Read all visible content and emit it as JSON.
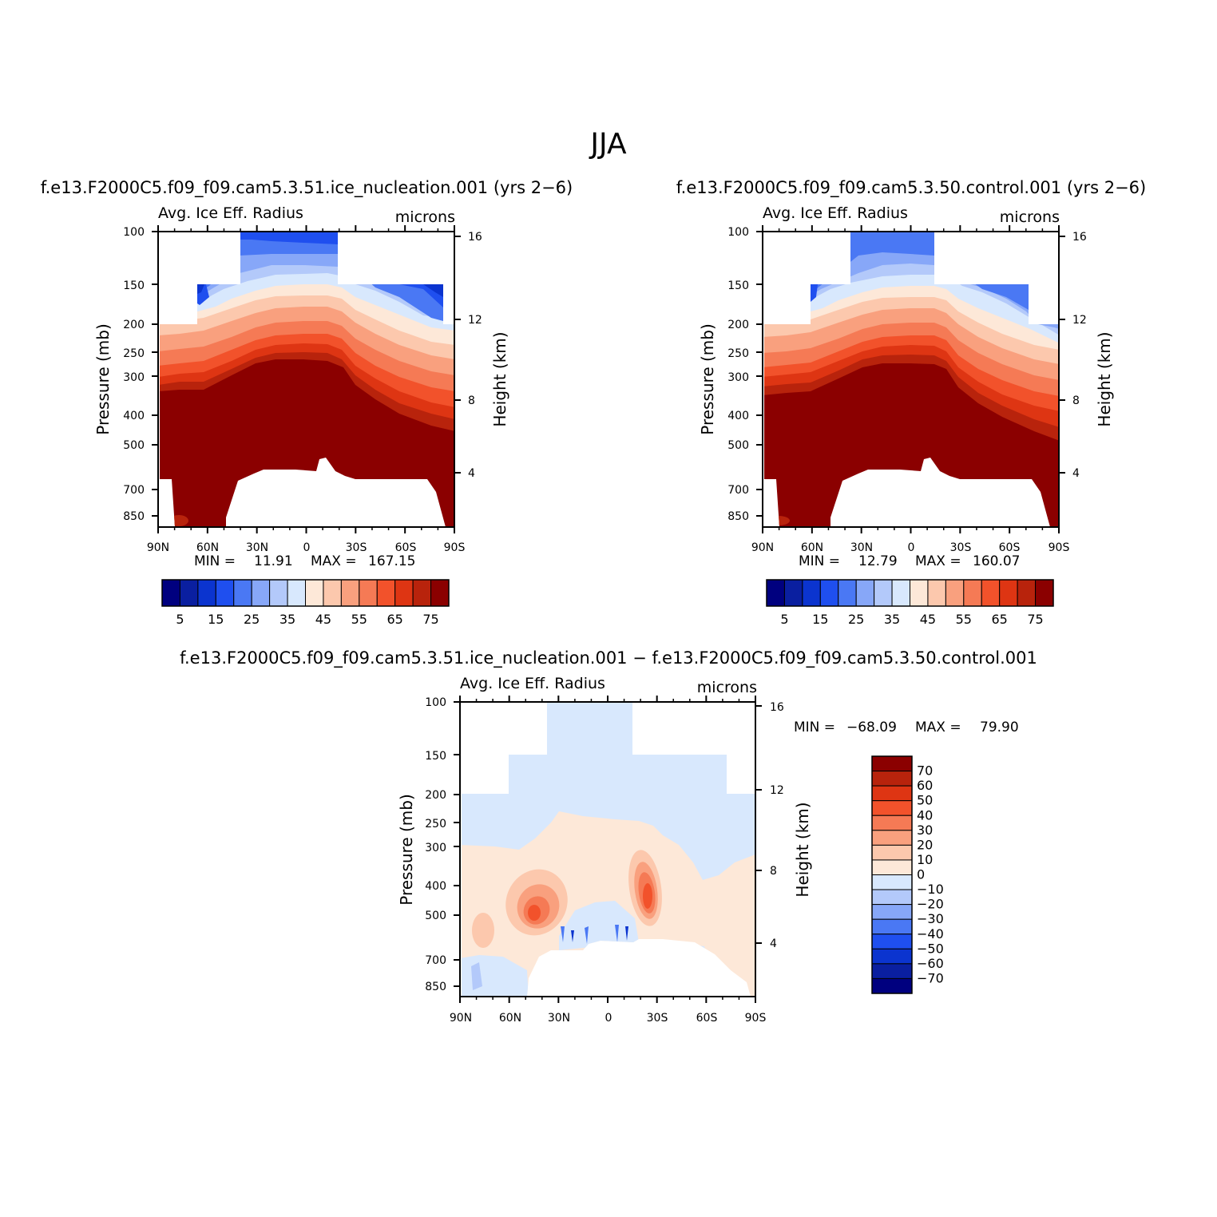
{
  "figure": {
    "title": "JJA"
  },
  "chart_data": [
    {
      "type": "heatmap",
      "id": "panel-1",
      "case": "f.e13.F2000C5.f09_f09.cam5.3.51.ice_nucleation.001 (yrs 2−6)",
      "field_label": "Avg. Ice Eff. Radius",
      "units": "microns",
      "xlabel": "",
      "ylabel": "Pressure (mb)",
      "y2label": "Height (km)",
      "x_ticks": [
        "90N",
        "60N",
        "30N",
        "0",
        "30S",
        "60S",
        "90S"
      ],
      "y_ticks": [
        "100",
        "150",
        "200",
        "250",
        "300",
        "400",
        "500",
        "700",
        "850"
      ],
      "y2_ticks": [
        "16",
        "12",
        "8",
        "4"
      ],
      "min_label": "MIN =",
      "min_value": "11.91",
      "max_label": "MAX =",
      "max_value": "167.15",
      "colorbar": {
        "levels": [
          5,
          10,
          15,
          20,
          25,
          30,
          35,
          40,
          45,
          50,
          55,
          60,
          65,
          70,
          75
        ],
        "labels": [
          "5",
          "15",
          "25",
          "35",
          "45",
          "55",
          "65",
          "75"
        ],
        "colors": [
          "#00007f",
          "#0a1fa0",
          "#0b34cf",
          "#1f4fef",
          "#4a78f4",
          "#87a7f8",
          "#b3c9fa",
          "#d8e8fd",
          "#fde8d8",
          "#fcc8ad",
          "#f9a07e",
          "#f57a55",
          "#f2522b",
          "#de3513",
          "#b8230c",
          "#8b0000"
        ]
      }
    },
    {
      "type": "heatmap",
      "id": "panel-2",
      "case": "f.e13.F2000C5.f09_f09.cam5.3.50.control.001 (yrs 2−6)",
      "field_label": "Avg. Ice Eff. Radius",
      "units": "microns",
      "xlabel": "",
      "ylabel": "Pressure (mb)",
      "y2label": "Height (km)",
      "x_ticks": [
        "90N",
        "60N",
        "30N",
        "0",
        "30S",
        "60S",
        "90S"
      ],
      "y_ticks": [
        "100",
        "150",
        "200",
        "250",
        "300",
        "400",
        "500",
        "700",
        "850"
      ],
      "y2_ticks": [
        "16",
        "12",
        "8",
        "4"
      ],
      "min_label": "MIN =",
      "min_value": "12.79",
      "max_label": "MAX =",
      "max_value": "160.07",
      "colorbar": {
        "levels": [
          5,
          10,
          15,
          20,
          25,
          30,
          35,
          40,
          45,
          50,
          55,
          60,
          65,
          70,
          75
        ],
        "labels": [
          "5",
          "15",
          "25",
          "35",
          "45",
          "55",
          "65",
          "75"
        ],
        "colors": [
          "#00007f",
          "#0a1fa0",
          "#0b34cf",
          "#1f4fef",
          "#4a78f4",
          "#87a7f8",
          "#b3c9fa",
          "#d8e8fd",
          "#fde8d8",
          "#fcc8ad",
          "#f9a07e",
          "#f57a55",
          "#f2522b",
          "#de3513",
          "#b8230c",
          "#8b0000"
        ]
      }
    },
    {
      "type": "heatmap",
      "id": "panel-3",
      "case": "f.e13.F2000C5.f09_f09.cam5.3.51.ice_nucleation.001 − f.e13.F2000C5.f09_f09.cam5.3.50.control.001",
      "field_label": "Avg. Ice Eff. Radius",
      "units": "microns",
      "xlabel": "",
      "ylabel": "Pressure (mb)",
      "y2label": "Height (km)",
      "x_ticks": [
        "90N",
        "60N",
        "30N",
        "0",
        "30S",
        "60S",
        "90S"
      ],
      "y_ticks": [
        "100",
        "150",
        "200",
        "250",
        "300",
        "400",
        "500",
        "700",
        "850"
      ],
      "y2_ticks": [
        "16",
        "12",
        "8",
        "4"
      ],
      "min_label": "MIN =",
      "min_value": "−68.09",
      "max_label": "MAX =",
      "max_value": "79.90",
      "colorbar": {
        "levels": [
          -70,
          -60,
          -50,
          -40,
          -30,
          -20,
          -10,
          0,
          10,
          20,
          30,
          40,
          50,
          60,
          70
        ],
        "labels": [
          "70",
          "60",
          "50",
          "40",
          "30",
          "20",
          "10",
          "0",
          "−10",
          "−20",
          "−30",
          "−40",
          "−50",
          "−60",
          "−70"
        ],
        "colors": [
          "#8b0000",
          "#b8230c",
          "#de3513",
          "#f2522b",
          "#f57a55",
          "#f9a07e",
          "#fcc8ad",
          "#fde8d8",
          "#d8e8fd",
          "#b3c9fa",
          "#87a7f8",
          "#4a78f4",
          "#1f4fef",
          "#0b34cf",
          "#0a1fa0",
          "#00007f"
        ]
      }
    }
  ]
}
